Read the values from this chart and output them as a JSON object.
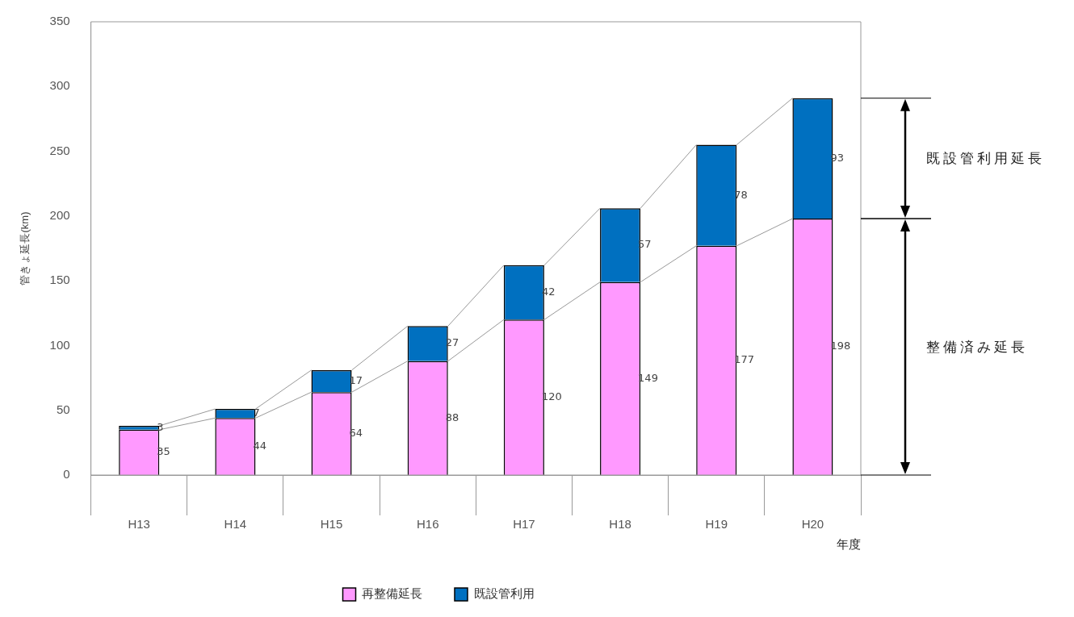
{
  "chart_data": {
    "type": "bar",
    "stacked": true,
    "ylabel": "管きょ延長(km)",
    "xlabel": "年度",
    "categories": [
      "H13",
      "H14",
      "H15",
      "H16",
      "H17",
      "H18",
      "H19",
      "H20"
    ],
    "series": [
      {
        "name": "再整備延長",
        "color": "#ff99ff",
        "values": [
          35,
          44,
          64,
          88,
          120,
          149,
          177,
          198
        ]
      },
      {
        "name": "既設管利用",
        "color": "#0070c0",
        "values": [
          3,
          7,
          17,
          27,
          42,
          57,
          78,
          93
        ]
      }
    ],
    "ylim": [
      0,
      350
    ],
    "yticks": [
      0,
      50,
      100,
      150,
      200,
      250,
      300,
      350
    ],
    "grid": false,
    "legend": "bottom",
    "data_labels": true,
    "annotations": [
      "既設管利用延長",
      "整備済み延長"
    ]
  }
}
